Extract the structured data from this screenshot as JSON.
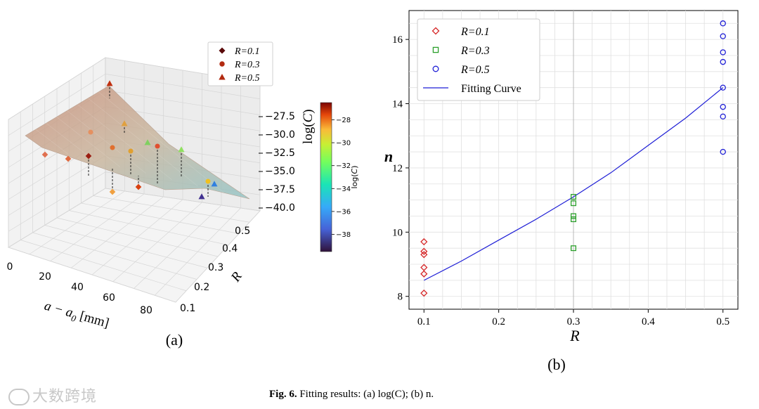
{
  "figure_caption": {
    "label": "Fig. 6.",
    "text": "Fitting results: (a) log(C); (b) n."
  },
  "watermark": {
    "text": "大数跨境",
    "icon": "chat-bubble-logo"
  },
  "colors": {
    "r01": "#d62728",
    "r03": "#2ca02c",
    "r05": "#1f1fd6",
    "fit": "#1f1fd6",
    "grid": "#d0d0d0",
    "surface": "#c9a08a"
  },
  "chart_data": [
    {
      "type": "scatter3d",
      "panel_label": "(a)",
      "xlabel": "a − a0 [mm]",
      "xlabel_main": "a − a",
      "xlabel_sub": "0",
      "xlabel_unit": "[mm]",
      "ylabel": "R",
      "zlabel": "log(C)",
      "x_ticks": [
        "0",
        "20",
        "40",
        "60",
        "80"
      ],
      "y_ticks": [
        "0.1",
        "0.2",
        "0.3",
        "0.4",
        "0.5"
      ],
      "z_ticks": [
        "−27.5",
        "−30.0",
        "−32.5",
        "−35.0",
        "−37.5",
        "−40.0"
      ],
      "legend": [
        {
          "label": "R=0.1",
          "marker": "diamond",
          "color": "#5a0a0a"
        },
        {
          "label": "R=0.3",
          "marker": "circle",
          "color": "#b22a10"
        },
        {
          "label": "R=0.5",
          "marker": "triangle",
          "color": "#b22a10"
        }
      ],
      "colorbar": {
        "label": "log(C)",
        "ticks": [
          "−28",
          "−30",
          "−32",
          "−34",
          "−36",
          "−38"
        ],
        "range": [
          -39.5,
          -26.5
        ]
      }
    },
    {
      "type": "scatter",
      "panel_label": "(b)",
      "xlabel": "R",
      "ylabel": "n",
      "xlim": [
        0.08,
        0.52
      ],
      "ylim": [
        7.6,
        16.9
      ],
      "x_ticks": [
        0.1,
        0.2,
        0.3,
        0.4,
        0.5
      ],
      "x_tick_labels": [
        "0.1",
        "0.2",
        "0.3",
        "0.4",
        "0.5"
      ],
      "y_ticks": [
        8,
        10,
        12,
        14,
        16
      ],
      "y_tick_labels": [
        "8",
        "10",
        "12",
        "14",
        "16"
      ],
      "series": [
        {
          "name": "R=0.1",
          "marker": "diamond",
          "color": "#d62728",
          "points": [
            [
              0.1,
              9.7
            ],
            [
              0.1,
              9.4
            ],
            [
              0.1,
              9.3
            ],
            [
              0.1,
              8.9
            ],
            [
              0.1,
              8.7
            ],
            [
              0.1,
              8.1
            ]
          ]
        },
        {
          "name": "R=0.3",
          "marker": "square",
          "color": "#2ca02c",
          "points": [
            [
              0.3,
              11.1
            ],
            [
              0.3,
              10.9
            ],
            [
              0.3,
              10.5
            ],
            [
              0.3,
              10.4
            ],
            [
              0.3,
              9.5
            ]
          ]
        },
        {
          "name": "R=0.5",
          "marker": "circle",
          "color": "#1f1fd6",
          "points": [
            [
              0.5,
              16.5
            ],
            [
              0.5,
              16.1
            ],
            [
              0.5,
              15.6
            ],
            [
              0.5,
              15.3
            ],
            [
              0.5,
              14.5
            ],
            [
              0.5,
              13.9
            ],
            [
              0.5,
              13.6
            ],
            [
              0.5,
              12.5
            ]
          ]
        }
      ],
      "fit_curve": {
        "name": "Fitting Curve",
        "color": "#1f1fd6",
        "x": [
          0.1,
          0.15,
          0.2,
          0.25,
          0.3,
          0.35,
          0.4,
          0.45,
          0.5
        ],
        "y": [
          8.5,
          9.1,
          9.75,
          10.4,
          11.1,
          11.85,
          12.7,
          13.55,
          14.5
        ]
      }
    }
  ]
}
